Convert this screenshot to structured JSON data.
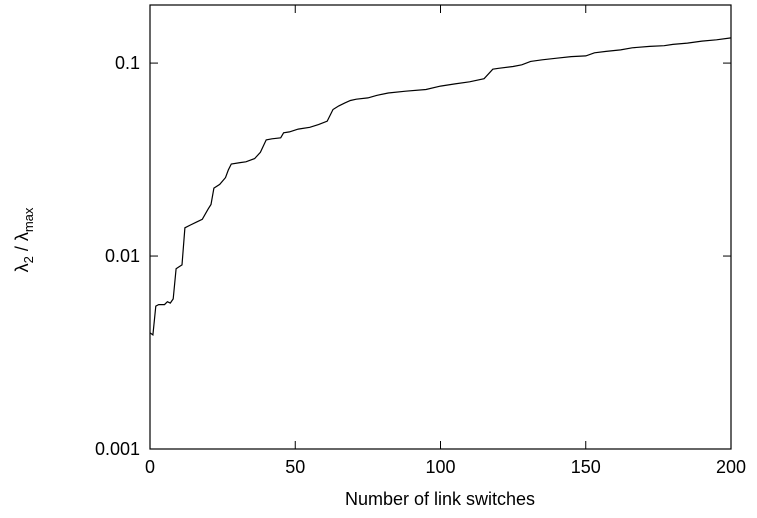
{
  "chart_data": {
    "type": "line",
    "xlabel": "Number of link switches",
    "ylabel": {
      "base": "λ",
      "num_sub": "2",
      "sep": " / ",
      "den_base": "λ",
      "den_sub": "max"
    },
    "xlim": [
      0,
      200
    ],
    "ylim": [
      0.001,
      0.2
    ],
    "yscale": "log",
    "grid": false,
    "x_ticks": [
      0,
      50,
      100,
      150,
      200
    ],
    "x_tick_labels": [
      "0",
      "50",
      "100",
      "150",
      "200"
    ],
    "y_ticks": [
      0.001,
      0.01,
      0.1
    ],
    "y_tick_labels": [
      "0.001",
      "0.01",
      "0.1"
    ],
    "series": [
      {
        "color": "#000000",
        "points": [
          [
            0,
            0.004
          ],
          [
            1,
            0.0039
          ],
          [
            2,
            0.0055
          ],
          [
            3,
            0.0056
          ],
          [
            5,
            0.0056
          ],
          [
            6,
            0.0058
          ],
          [
            7,
            0.0057
          ],
          [
            8,
            0.006
          ],
          [
            9,
            0.0086
          ],
          [
            10,
            0.0088
          ],
          [
            11,
            0.009
          ],
          [
            12,
            0.014
          ],
          [
            14,
            0.0145
          ],
          [
            16,
            0.015
          ],
          [
            18,
            0.0155
          ],
          [
            20,
            0.0175
          ],
          [
            21,
            0.0185
          ],
          [
            22,
            0.0225
          ],
          [
            24,
            0.0235
          ],
          [
            26,
            0.0255
          ],
          [
            27,
            0.028
          ],
          [
            28,
            0.03
          ],
          [
            31,
            0.0305
          ],
          [
            33,
            0.0308
          ],
          [
            36,
            0.032
          ],
          [
            38,
            0.0345
          ],
          [
            40,
            0.04
          ],
          [
            42,
            0.0405
          ],
          [
            45,
            0.041
          ],
          [
            46,
            0.0435
          ],
          [
            48,
            0.044
          ],
          [
            51,
            0.0455
          ],
          [
            55,
            0.0465
          ],
          [
            58,
            0.048
          ],
          [
            61,
            0.05
          ],
          [
            63,
            0.0575
          ],
          [
            65,
            0.06
          ],
          [
            67,
            0.062
          ],
          [
            69,
            0.064
          ],
          [
            71,
            0.065
          ],
          [
            75,
            0.066
          ],
          [
            78,
            0.068
          ],
          [
            82,
            0.07
          ],
          [
            88,
            0.0715
          ],
          [
            95,
            0.073
          ],
          [
            100,
            0.076
          ],
          [
            105,
            0.078
          ],
          [
            110,
            0.08
          ],
          [
            115,
            0.083
          ],
          [
            118,
            0.093
          ],
          [
            120,
            0.094
          ],
          [
            125,
            0.096
          ],
          [
            128,
            0.098
          ],
          [
            131,
            0.102
          ],
          [
            135,
            0.104
          ],
          [
            140,
            0.106
          ],
          [
            145,
            0.108
          ],
          [
            150,
            0.109
          ],
          [
            153,
            0.113
          ],
          [
            157,
            0.115
          ],
          [
            162,
            0.117
          ],
          [
            166,
            0.12
          ],
          [
            172,
            0.122
          ],
          [
            177,
            0.123
          ],
          [
            180,
            0.125
          ],
          [
            185,
            0.127
          ],
          [
            190,
            0.13
          ],
          [
            195,
            0.132
          ],
          [
            200,
            0.135
          ]
        ]
      }
    ]
  }
}
